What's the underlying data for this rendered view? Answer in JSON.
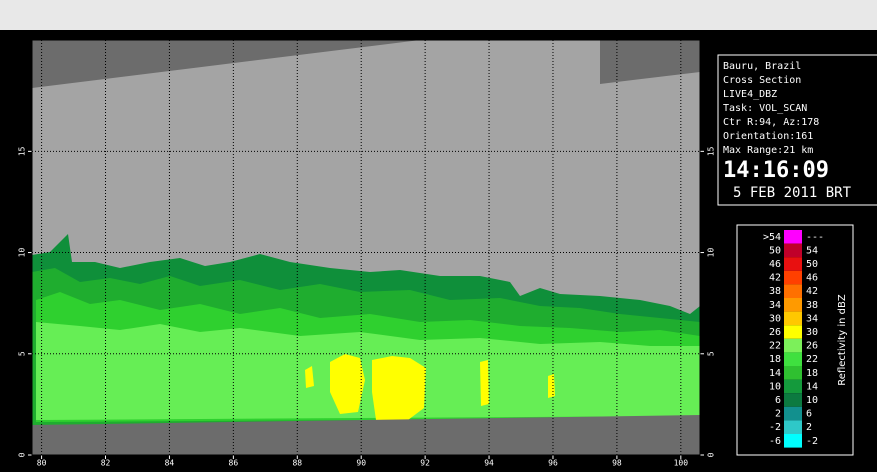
{
  "info_panel": {
    "lines": [
      "Bauru, Brazil",
      "Cross Section",
      "LIVE4_DBZ",
      "Task: VOL_SCAN",
      "Ctr R:94, Az:178",
      "Orientation:161",
      "Max Range:21 km"
    ],
    "time": "14:16:09",
    "date": "5 FEB 2011 BRT"
  },
  "plot": {
    "xlim": [
      79.7,
      100.6
    ],
    "ylim": [
      0,
      20.5
    ],
    "xticks": [
      80,
      82,
      84,
      86,
      88,
      90,
      92,
      94,
      96,
      98,
      100
    ],
    "yticks": [
      0,
      5,
      10,
      15
    ]
  },
  "legend": {
    "title": "Reflectivity in dBZ",
    "rows": [
      {
        "low": ">54",
        "high": "---",
        "color": "#ff00ff"
      },
      {
        "low": "50",
        "high": "54",
        "color": "#c0002a"
      },
      {
        "low": "46",
        "high": "50",
        "color": "#e81010"
      },
      {
        "low": "42",
        "high": "46",
        "color": "#ff4000"
      },
      {
        "low": "38",
        "high": "42",
        "color": "#ff7000"
      },
      {
        "low": "34",
        "high": "38",
        "color": "#ff9a00"
      },
      {
        "low": "30",
        "high": "34",
        "color": "#ffc800"
      },
      {
        "low": "26",
        "high": "30",
        "color": "#ffff00"
      },
      {
        "low": "22",
        "high": "26",
        "color": "#7cf05a"
      },
      {
        "low": "18",
        "high": "22",
        "color": "#3fe03f"
      },
      {
        "low": "14",
        "high": "18",
        "color": "#2fc030"
      },
      {
        "low": "10",
        "high": "14",
        "color": "#149a3c"
      },
      {
        "low": "6",
        "high": "10",
        "color": "#0c7a40"
      },
      {
        "low": "2",
        "high": "6",
        "color": "#12908e"
      },
      {
        "low": "-2",
        "high": "2",
        "color": "#2ec8c8"
      },
      {
        "low": "-6",
        "high": "-2",
        "color": "#00ffff"
      }
    ]
  }
}
